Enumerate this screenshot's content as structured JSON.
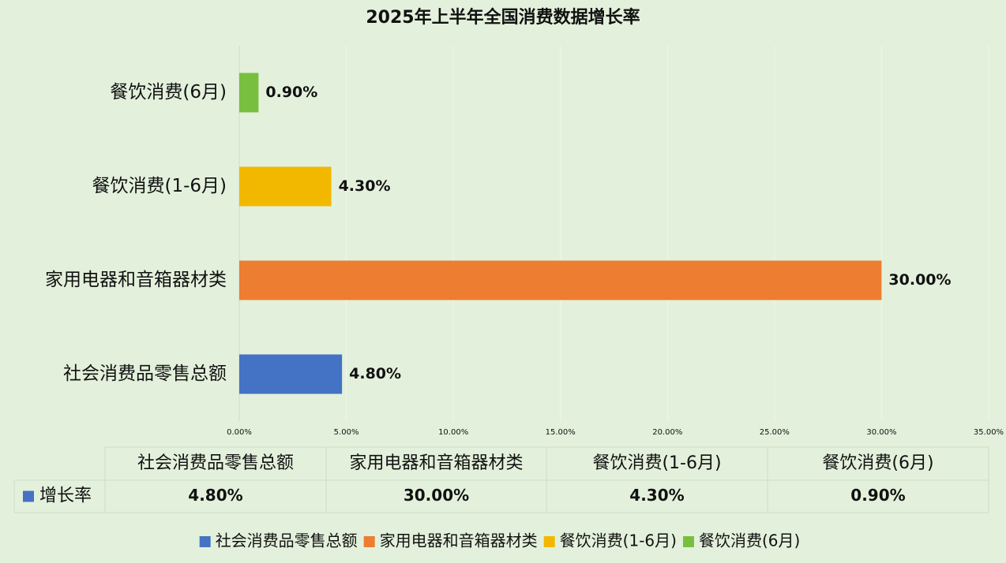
{
  "chart_data": {
    "type": "bar",
    "orientation": "horizontal",
    "title": "2025年上半年全国消费数据增长率",
    "categories": [
      "社会消费品零售总额",
      "家用电器和音箱器材类",
      "餐饮消费(1-6月)",
      "餐饮消费(6月)"
    ],
    "series": [
      {
        "name": "增长率",
        "colors": [
          "#4472c4",
          "#ed7d31",
          "#f2b800",
          "#78bf3f"
        ],
        "values": [
          4.8,
          30,
          4.3,
          0.9
        ],
        "value_labels": [
          "4.80%",
          "30.00%",
          "4.30%",
          "0.90%"
        ]
      }
    ],
    "xlim": [
      0,
      35
    ],
    "xticks": [
      {
        "value": 0,
        "label": "0.00%"
      },
      {
        "value": 5,
        "label": "5.00%"
      },
      {
        "value": 10,
        "label": "10.00%"
      },
      {
        "value": 15,
        "label": "15.00%"
      },
      {
        "value": 20,
        "label": "20.00%"
      },
      {
        "value": 25,
        "label": "25.00%"
      },
      {
        "value": 30,
        "label": "30.00%"
      },
      {
        "value": 35,
        "label": "35.00%"
      }
    ],
    "grid": true,
    "data_table": true,
    "legend": "bottom"
  }
}
